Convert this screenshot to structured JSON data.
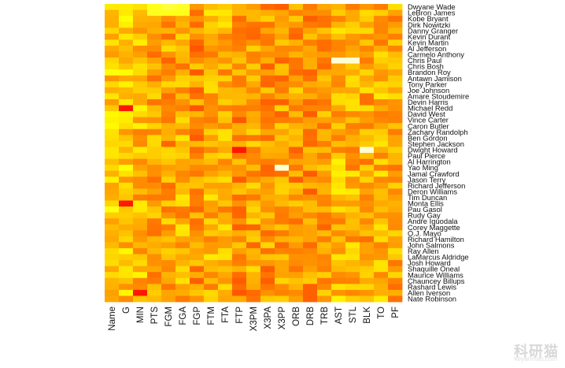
{
  "chart_data": {
    "type": "heatmap",
    "x_labels": [
      "Name",
      "G",
      "MIN",
      "PTS",
      "FGM",
      "FGA",
      "FGP",
      "FTM",
      "FTA",
      "FTP",
      "X3PM",
      "X3PA",
      "X3PP",
      "ORB",
      "DRB",
      "TRB",
      "AST",
      "STL",
      "BLK",
      "TO",
      "PF"
    ],
    "y_labels": [
      "Dwyane Wade",
      "LeBron James",
      "Kobe Bryant",
      "Dirk Nowitzki",
      "Danny Granger",
      "Kevin Durant",
      "Kevin Martin",
      "Al Jefferson",
      "Carmelo Anthony",
      "Chris Paul",
      "Chris Bosh",
      "Brandon Roy",
      "Antawn Jamison",
      "Tony Parker",
      "Joe Johnson",
      "Amare Stoudemire",
      "Devin Harris",
      "Michael Redd",
      "David West",
      "Vince Carter",
      "Caron Butler",
      "Zachary Randolph",
      "Ben Gordon",
      "Stephen Jackson",
      "Dwight Howard",
      "Paul Pierce",
      "Al Harrington",
      "Yao Ming",
      "Jamal Crawford",
      "Jason Terry",
      "Richard Jefferson",
      "Deron Williams",
      "Tim Duncan",
      "Monta Ellis",
      "Pau Gasol",
      "Rudy Gay",
      "Andre Iguodala",
      "Corey Maggette",
      "O.J. Mayo",
      "Richard Hamilton",
      "John Salmons",
      "Ray Allen",
      "LaMarcus Aldridge",
      "Josh Howard",
      "Shaquille Oneal",
      "Maurice Williams",
      "Chauncey Billups",
      "Rashard Lewis",
      "Allen Iverson",
      "Nate Robinson"
    ],
    "value_range": [
      0,
      1
    ],
    "color_scale": [
      "#ff0000",
      "#ff8000",
      "#ffff00",
      "#ffffe0"
    ],
    "legend": "none",
    "grid": false,
    "row_order": "top-to-bottom",
    "values_seed": 20240517
  },
  "watermark": {
    "logo_text": "科研猫",
    "site_text": "keyanmao.com"
  }
}
